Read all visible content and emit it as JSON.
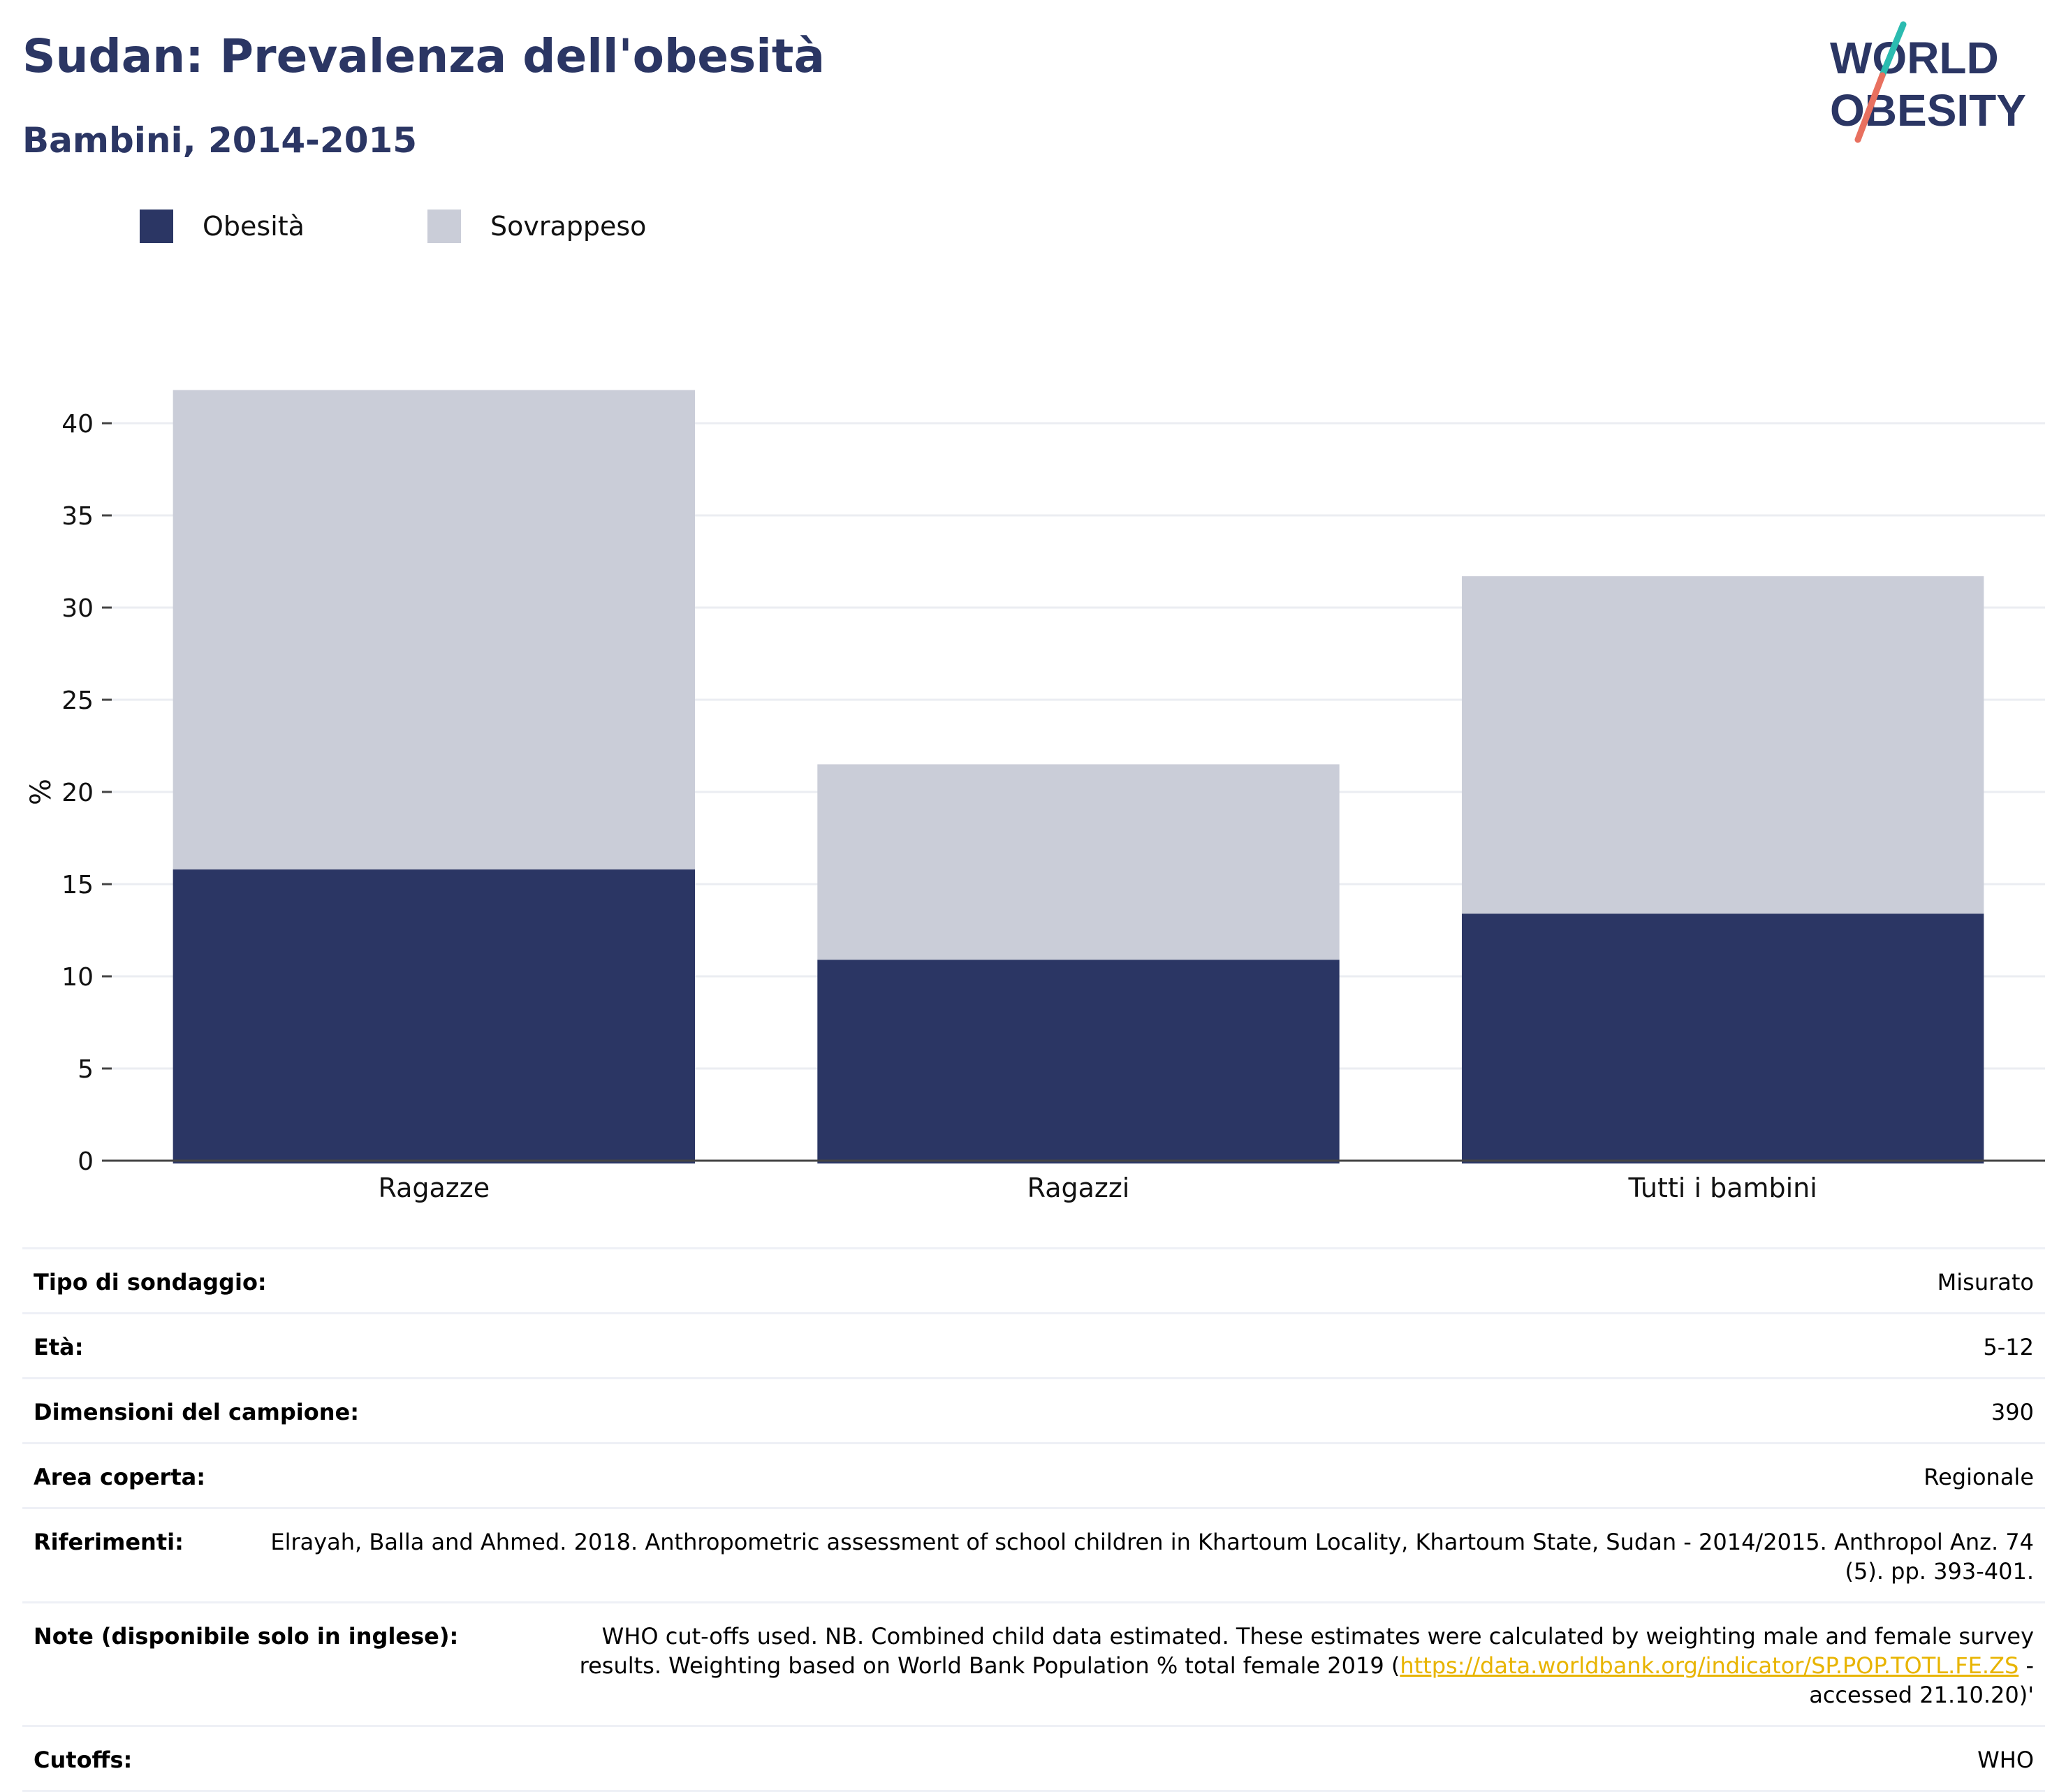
{
  "title": "Sudan: Prevalenza dell'obesità",
  "subtitle": "Bambini, 2014-2015",
  "logo": {
    "line1": "WORLD",
    "line2": "OBESITY"
  },
  "legend": [
    {
      "label": "Obesità",
      "color": "#2b3664"
    },
    {
      "label": "Sovrappeso",
      "color": "#cacdd8"
    }
  ],
  "chart_data": {
    "type": "bar",
    "stacked": true,
    "categories": [
      "Ragazze",
      "Ragazzi",
      "Tutti i bambini"
    ],
    "series": [
      {
        "name": "Obesità",
        "values": [
          15.8,
          10.9,
          13.4
        ],
        "color": "#2b3664"
      },
      {
        "name": "Sovrappeso",
        "values": [
          26.0,
          10.6,
          18.3
        ],
        "color": "#cacdd8"
      }
    ],
    "totals": [
      41.8,
      21.5,
      31.7
    ],
    "ylabel": "%",
    "xlabel": "",
    "ylim": [
      0,
      43
    ],
    "yticks": [
      0,
      5,
      10,
      15,
      20,
      25,
      30,
      35,
      40
    ],
    "grid": true,
    "legend_position": "top-left"
  },
  "info": {
    "survey_type": {
      "label": "Tipo di sondaggio:",
      "value": "Misurato"
    },
    "age": {
      "label": "Età:",
      "value": "5-12"
    },
    "sample_size": {
      "label": "Dimensioni del campione:",
      "value": "390"
    },
    "area": {
      "label": "Area coperta:",
      "value": "Regionale"
    },
    "references": {
      "label": "Riferimenti:",
      "value": "Elrayah, Balla and Ahmed. 2018. Anthropometric assessment of school children in Khartoum Locality, Khartoum State, Sudan - 2014/2015. Anthropol Anz. 74 (5). pp. 393-401."
    },
    "notes": {
      "label": "Note (disponibile solo in inglese):",
      "text_before": "WHO cut-offs used. NB. Combined child data estimated. These estimates were calculated by weighting male and female survey results. Weighting based on World Bank Population % total female 2019 (",
      "link": "https://data.worldbank.org/indicator/SP.POP.TOTL.FE.ZS",
      "text_after": " - accessed 21.10.20)'"
    },
    "cutoffs": {
      "label": "Cutoffs:",
      "value": "WHO"
    }
  }
}
